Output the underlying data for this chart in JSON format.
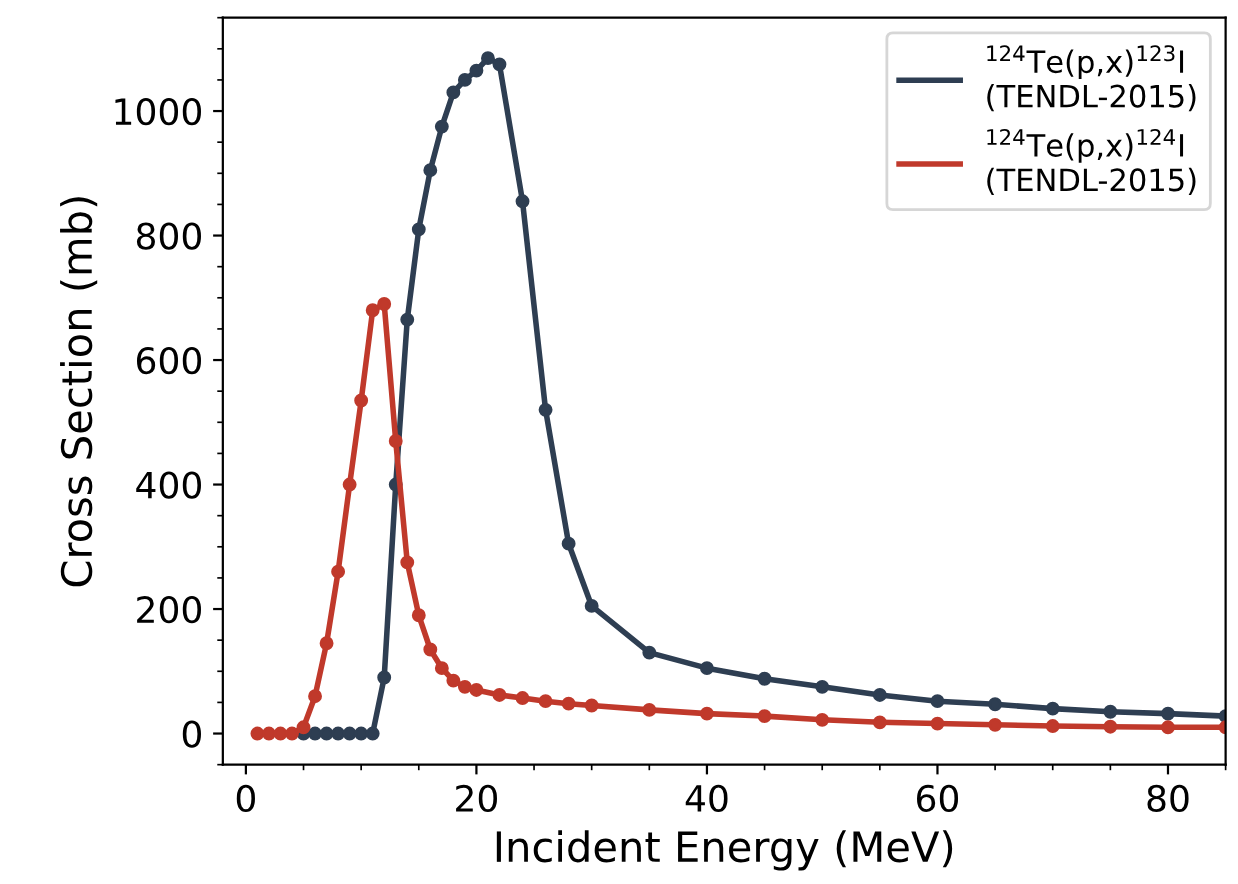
{
  "chart_data": {
    "type": "line",
    "xlabel": "Incident Energy (MeV)",
    "ylabel": "Cross Section (mb)",
    "xlim": [
      -2,
      85
    ],
    "ylim": [
      -50,
      1150
    ],
    "xticks": [
      0,
      20,
      40,
      60,
      80
    ],
    "yticks": [
      0,
      200,
      400,
      600,
      800,
      1000
    ],
    "grid": false,
    "legend": "top right",
    "marker": "circle",
    "line_style": "solid",
    "series": [
      {
        "name": "$^{124}$Te(p,x)$^{123}$I\n(TENDL-2015)",
        "color": "#2e3e52",
        "x": [
          5,
          6,
          7,
          8,
          9,
          10,
          11,
          12,
          13,
          14,
          15,
          16,
          17,
          18,
          19,
          20,
          21,
          22,
          24,
          26,
          28,
          30,
          35,
          40,
          45,
          50,
          55,
          60,
          65,
          70,
          75,
          80,
          85
        ],
        "values": [
          0,
          0,
          0,
          0,
          0,
          0,
          0,
          90,
          400,
          665,
          810,
          905,
          975,
          1030,
          1050,
          1065,
          1085,
          1075,
          855,
          520,
          305,
          205,
          130,
          105,
          88,
          75,
          62,
          52,
          47,
          40,
          35,
          32,
          28
        ]
      },
      {
        "name": "$^{124}$Te(p,x)$^{124}$I\n(TENDL-2015)",
        "color": "#c0392b",
        "x": [
          1,
          2,
          3,
          4,
          5,
          6,
          7,
          8,
          9,
          10,
          11,
          12,
          13,
          14,
          15,
          16,
          17,
          18,
          19,
          20,
          22,
          24,
          26,
          28,
          30,
          35,
          40,
          45,
          50,
          55,
          60,
          65,
          70,
          75,
          80,
          85
        ],
        "values": [
          0,
          0,
          0,
          0,
          10,
          60,
          145,
          260,
          400,
          535,
          680,
          690,
          470,
          275,
          190,
          135,
          105,
          85,
          75,
          70,
          62,
          57,
          52,
          48,
          45,
          38,
          32,
          28,
          22,
          18,
          16,
          14,
          12,
          11,
          10,
          10
        ]
      }
    ]
  }
}
